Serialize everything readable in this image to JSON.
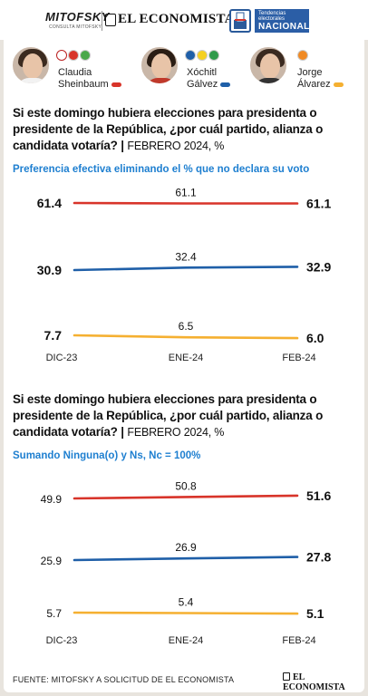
{
  "header": {
    "mitofsky": "MITOFSKY",
    "mitofsky_sub": "CONSULTA MITOFSKY",
    "economista": "EL ECONOMISTA",
    "badge_line1": "Tendencias electorales",
    "badge_line2": "NACIONAL"
  },
  "candidates": [
    {
      "first": "Claudia",
      "last": "Sheinbaum",
      "color": "#d8342a"
    },
    {
      "first": "Xóchitl",
      "last": "Gálvez",
      "color": "#1f5fa8"
    },
    {
      "first": "Jorge",
      "last": "Álvarez",
      "color": "#f5b031"
    }
  ],
  "questions": [
    {
      "text": "Si este domingo hubiera elecciones para presidenta o presidente de la República, ¿por cuál partido, alianza o candidata votaría? |",
      "date": "FEBRERO 2024, %",
      "subtitle": "Preferencia efectiva eliminando el % que no declara su voto"
    },
    {
      "text": "Si este domingo hubiera elecciones para presidenta o presidente de la República, ¿por cuál partido, alianza o candidata votaría? |",
      "date": "FEBRERO 2024, %",
      "subtitle": "Sumando Ninguna(o) y Ns, Nc = 100%"
    }
  ],
  "chart_data": [
    {
      "type": "line",
      "categories": [
        "DIC-23",
        "ENE-24",
        "FEB-24"
      ],
      "series": [
        {
          "name": "Claudia Sheinbaum",
          "color": "#d8342a",
          "values": [
            61.4,
            61.1,
            61.1
          ],
          "labels": [
            "61.4",
            "61.1",
            "61.1"
          ]
        },
        {
          "name": "Xóchitl Gálvez",
          "color": "#1f5fa8",
          "values": [
            30.9,
            32.4,
            32.9
          ],
          "labels": [
            "30.9",
            "32.4",
            "32.9"
          ]
        },
        {
          "name": "Jorge Álvarez",
          "color": "#f5b031",
          "values": [
            7.7,
            6.5,
            6.0
          ],
          "labels": [
            "7.7",
            "6.5",
            "6.0"
          ]
        }
      ]
    },
    {
      "type": "line",
      "categories": [
        "DIC-23",
        "ENE-24",
        "FEB-24"
      ],
      "series": [
        {
          "name": "Claudia Sheinbaum",
          "color": "#d8342a",
          "values": [
            49.9,
            50.8,
            51.6
          ],
          "labels": [
            "49.9",
            "50.8",
            "51.6"
          ]
        },
        {
          "name": "Xóchitl Gálvez",
          "color": "#1f5fa8",
          "values": [
            25.9,
            26.9,
            27.8
          ],
          "labels": [
            "25.9",
            "26.9",
            "27.8"
          ]
        },
        {
          "name": "Jorge Álvarez",
          "color": "#f5b031",
          "values": [
            5.7,
            5.4,
            5.1
          ],
          "labels": [
            "5.7",
            "5.4",
            "5.1"
          ]
        }
      ]
    }
  ],
  "footer": {
    "source": "FUENTE: MITOFSKY A SOLICITUD DE EL ECONOMISTA",
    "logo": "EL ECONOMISTA"
  }
}
